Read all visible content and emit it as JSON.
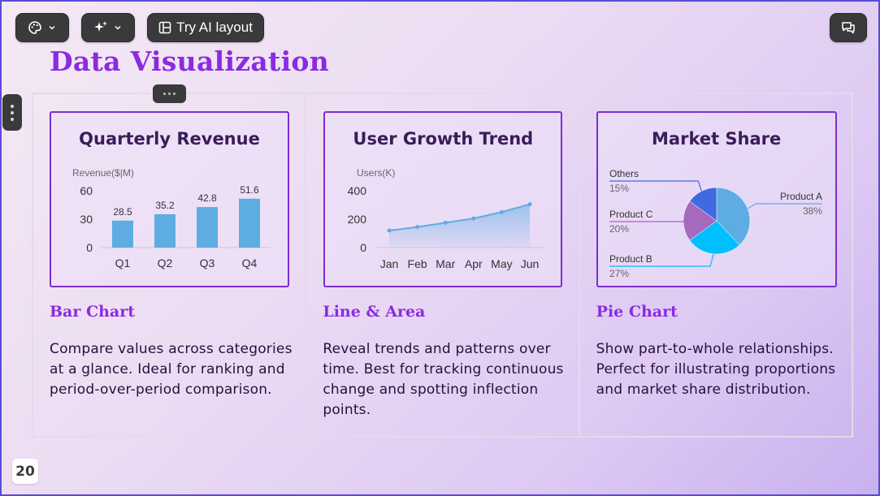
{
  "toolbar": {
    "palette_icon": "palette-icon",
    "magic_icon": "sparkle-icon",
    "ai_layout_label": "Try AI layout",
    "comments_icon": "comments-icon"
  },
  "slide": {
    "title": "Data Visualization",
    "page_number": "20"
  },
  "cards": [
    {
      "title": "Quarterly Revenue",
      "name": "Bar Chart",
      "description": "Compare values across categories at a glance. Ideal for ranking and period-over-period comparison."
    },
    {
      "title": "User Growth Trend",
      "name": "Line & Area",
      "description": "Reveal trends and patterns over time. Best for tracking continuous change and spotting inflection points."
    },
    {
      "title": "Market Share",
      "name": "Pie Chart",
      "description": "Show part-to-whole relationships. Perfect for illustrating proportions and market share distribution."
    }
  ],
  "chart_data": [
    {
      "type": "bar",
      "ylabel": "Revenue($|M)",
      "categories": [
        "Q1",
        "Q2",
        "Q3",
        "Q4"
      ],
      "values": [
        28.5,
        35.2,
        42.8,
        51.6
      ],
      "yticks": [
        0,
        30,
        60
      ],
      "ylim": [
        0,
        60
      ],
      "color": "#5dade2"
    },
    {
      "type": "line",
      "ylabel": "Users(K)",
      "categories": [
        "Jan",
        "Feb",
        "Mar",
        "Apr",
        "May",
        "Jun"
      ],
      "values": [
        120,
        145,
        175,
        205,
        250,
        305
      ],
      "yticks": [
        0,
        200,
        400
      ],
      "ylim": [
        0,
        400
      ],
      "color": "#5dade2",
      "area": true
    },
    {
      "type": "pie",
      "slices": [
        {
          "name": "Product A",
          "value": 38,
          "label": "38%",
          "color": "#5dade2"
        },
        {
          "name": "Product B",
          "value": 27,
          "label": "27%",
          "color": "#00bfff"
        },
        {
          "name": "Product C",
          "value": 20,
          "label": "20%",
          "color": "#a569bd"
        },
        {
          "name": "Others",
          "value": 15,
          "label": "15%",
          "color": "#4169e1"
        }
      ]
    }
  ]
}
